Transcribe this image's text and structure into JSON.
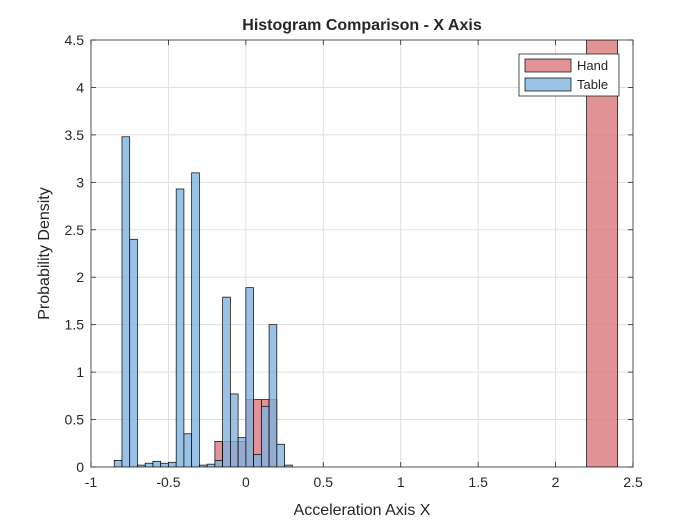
{
  "chart_data": {
    "type": "bar",
    "subtype": "histogram",
    "title": "Histogram Comparison - X Axis",
    "xlabel": "Acceleration Axis X",
    "ylabel": "Probability Density",
    "xlim": [
      -1,
      2.5
    ],
    "ylim": [
      0,
      4.5
    ],
    "xticks": [
      -1,
      -0.5,
      0,
      0.5,
      1,
      1.5,
      2,
      2.5
    ],
    "xtick_labels": [
      "-1",
      "-0.5",
      "0",
      "0.5",
      "1",
      "1.5",
      "2",
      "2.5"
    ],
    "yticks": [
      0,
      0.5,
      1,
      1.5,
      2,
      2.5,
      3,
      3.5,
      4,
      4.5
    ],
    "ytick_labels": [
      "0",
      "0.5",
      "1",
      "1.5",
      "2",
      "2.5",
      "3",
      "3.5",
      "4",
      "4.5"
    ],
    "grid": true,
    "legend_position": "top-right",
    "series": [
      {
        "name": "Hand",
        "color": "#D9787C",
        "edge_color": "#000000",
        "alpha": 0.8,
        "bins": [
          {
            "x0": -0.2,
            "x1": -0.15,
            "value": 0.27
          },
          {
            "x0": -0.15,
            "x1": -0.1,
            "value": 0.27
          },
          {
            "x0": -0.1,
            "x1": -0.05,
            "value": 0.27
          },
          {
            "x0": -0.05,
            "x1": 0.0,
            "value": 0.27
          },
          {
            "x0": 0.0,
            "x1": 0.05,
            "value": 0.71
          },
          {
            "x0": 0.05,
            "x1": 0.1,
            "value": 0.71
          },
          {
            "x0": 0.1,
            "x1": 0.15,
            "value": 0.71
          },
          {
            "x0": 0.15,
            "x1": 0.2,
            "value": 0.71
          },
          {
            "x0": 2.2,
            "x1": 2.4,
            "value": 4.5
          }
        ]
      },
      {
        "name": "Table",
        "color": "#7FB3DD",
        "edge_color": "#000000",
        "alpha": 0.8,
        "bins": [
          {
            "x0": -0.85,
            "x1": -0.8,
            "value": 0.07
          },
          {
            "x0": -0.8,
            "x1": -0.75,
            "value": 3.48
          },
          {
            "x0": -0.75,
            "x1": -0.7,
            "value": 2.4
          },
          {
            "x0": -0.7,
            "x1": -0.65,
            "value": 0.02
          },
          {
            "x0": -0.65,
            "x1": -0.6,
            "value": 0.04
          },
          {
            "x0": -0.6,
            "x1": -0.55,
            "value": 0.06
          },
          {
            "x0": -0.55,
            "x1": -0.5,
            "value": 0.04
          },
          {
            "x0": -0.5,
            "x1": -0.45,
            "value": 0.05
          },
          {
            "x0": -0.45,
            "x1": -0.4,
            "value": 2.93
          },
          {
            "x0": -0.4,
            "x1": -0.35,
            "value": 0.35
          },
          {
            "x0": -0.35,
            "x1": -0.3,
            "value": 3.1
          },
          {
            "x0": -0.3,
            "x1": -0.25,
            "value": 0.02
          },
          {
            "x0": -0.25,
            "x1": -0.2,
            "value": 0.03
          },
          {
            "x0": -0.2,
            "x1": -0.15,
            "value": 0.07
          },
          {
            "x0": -0.15,
            "x1": -0.1,
            "value": 1.79
          },
          {
            "x0": -0.1,
            "x1": -0.05,
            "value": 0.77
          },
          {
            "x0": -0.05,
            "x1": 0.0,
            "value": 0.31
          },
          {
            "x0": 0.0,
            "x1": 0.05,
            "value": 1.89
          },
          {
            "x0": 0.05,
            "x1": 0.1,
            "value": 0.13
          },
          {
            "x0": 0.1,
            "x1": 0.15,
            "value": 0.64
          },
          {
            "x0": 0.15,
            "x1": 0.2,
            "value": 1.5
          },
          {
            "x0": 0.2,
            "x1": 0.25,
            "value": 0.24
          },
          {
            "x0": 0.25,
            "x1": 0.3,
            "value": 0.02
          }
        ]
      }
    ]
  }
}
